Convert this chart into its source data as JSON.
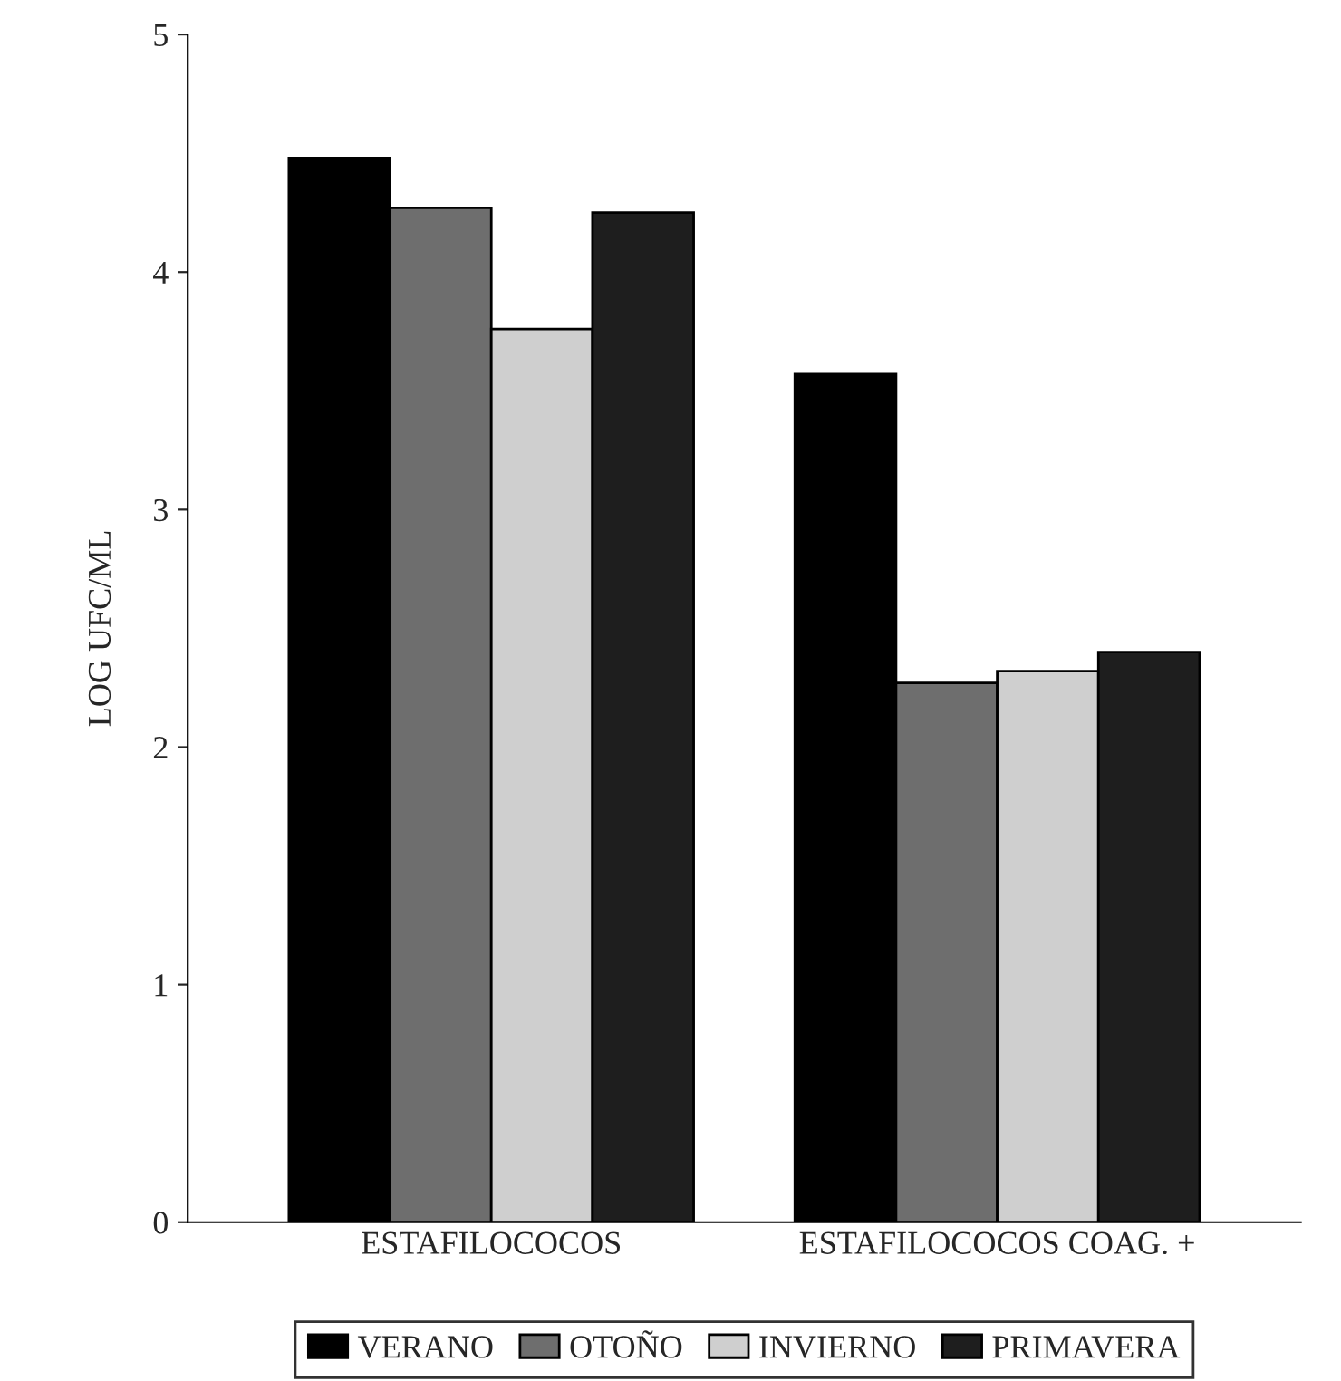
{
  "chart_data": {
    "type": "bar",
    "ylabel": "LOG UFC/ML",
    "categories": [
      "ESTAFILOCOCOS",
      "ESTAFILOCOCOS COAG. +"
    ],
    "series": [
      {
        "name": "VERANO",
        "color": "#000000",
        "values": [
          4.48,
          3.57
        ]
      },
      {
        "name": "OTOÑO",
        "color": "#6e6e6e",
        "values": [
          4.27,
          2.27
        ]
      },
      {
        "name": "INVIERNO",
        "color": "#cfcfcf",
        "values": [
          3.76,
          2.32
        ]
      },
      {
        "name": "PRIMAVERA",
        "color": "#1e1e1e",
        "values": [
          4.25,
          2.4
        ]
      }
    ],
    "ylim": [
      0,
      5
    ],
    "yticks": [
      0,
      1,
      2,
      3,
      4,
      5
    ],
    "grid": false,
    "legend": "bottom"
  }
}
